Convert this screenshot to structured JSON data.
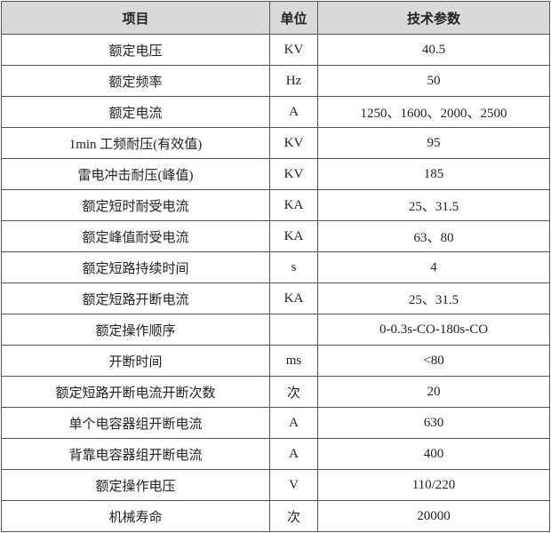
{
  "table": {
    "headers": [
      "项目",
      "单位",
      "技术参数"
    ],
    "rows": [
      [
        "额定电压",
        "KV",
        "40.5"
      ],
      [
        "额定频率",
        "Hz",
        "50"
      ],
      [
        "额定电流",
        "A",
        "1250、1600、2000、2500"
      ],
      [
        "1min 工频耐压(有效值)",
        "KV",
        "95"
      ],
      [
        "雷电冲击耐压(峰值)",
        "KV",
        "185"
      ],
      [
        "额定短时耐受电流",
        "KA",
        "25、31.5"
      ],
      [
        "额定峰值耐受电流",
        "KA",
        "63、80"
      ],
      [
        "额定短路持续时间",
        "s",
        "4"
      ],
      [
        "额定短路开断电流",
        "KA",
        "25、31.5"
      ],
      [
        "额定操作顺序",
        "",
        "0-0.3s-CO-180s-CO"
      ],
      [
        "开断时间",
        "ms",
        "<80"
      ],
      [
        "额定短路开断电流开断次数",
        "次",
        "20"
      ],
      [
        "单个电容器组开断电流",
        "A",
        "630"
      ],
      [
        "背靠电容器组开断电流",
        "A",
        "400"
      ],
      [
        "额定操作电压",
        "V",
        "110/220"
      ],
      [
        "机械寿命",
        "次",
        "20000"
      ]
    ]
  }
}
